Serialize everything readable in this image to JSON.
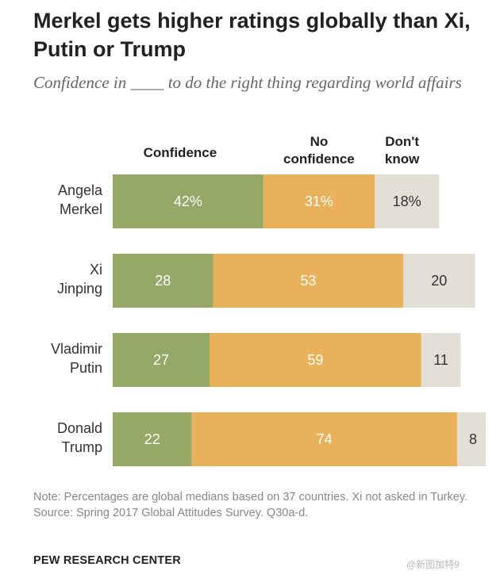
{
  "title": "Merkel gets higher ratings globally than Xi, Putin or Trump",
  "subtitle": "Confidence in ____ to do the right thing regarding world affairs",
  "colors": {
    "confidence": "#95a866",
    "no_confidence": "#e9b25a",
    "dont_know": "#e2dfd6",
    "label_light": "#ffffff",
    "label_dark": "#333333"
  },
  "chart_data": {
    "type": "bar",
    "orientation": "horizontal",
    "stacked": true,
    "categories": [
      "Angela Merkel",
      "Xi Jinping",
      "Vladimir Putin",
      "Donald Trump"
    ],
    "category_lines": [
      [
        "Angela",
        "Merkel"
      ],
      [
        "Xi",
        "Jinping"
      ],
      [
        "Vladimir",
        "Putin"
      ],
      [
        "Donald",
        "Trump"
      ]
    ],
    "series": [
      {
        "name": "Confidence",
        "header_lines": [
          "Confidence"
        ],
        "values": [
          42,
          28,
          27,
          22
        ],
        "labels": [
          "42%",
          "28",
          "27",
          "22"
        ]
      },
      {
        "name": "No confidence",
        "header_lines": [
          "No",
          "confidence"
        ],
        "values": [
          31,
          53,
          59,
          74
        ],
        "labels": [
          "31%",
          "53",
          "59",
          "74"
        ]
      },
      {
        "name": "Don't know",
        "header_lines": [
          "Don't",
          "know"
        ],
        "values": [
          18,
          20,
          11,
          8
        ],
        "labels": [
          "18%",
          "20",
          "11",
          "8"
        ]
      }
    ],
    "xlim": [
      0,
      105
    ],
    "grid": false,
    "legend": "column headers above bars"
  },
  "notes": {
    "note": "Note: Percentages are global medians based on 37 countries. Xi not asked in Turkey.",
    "source": "Source: Spring 2017 Global Attitudes Survey. Q30a-d."
  },
  "brand": "PEW RESEARCH CENTER",
  "watermark": "@新图加特9"
}
